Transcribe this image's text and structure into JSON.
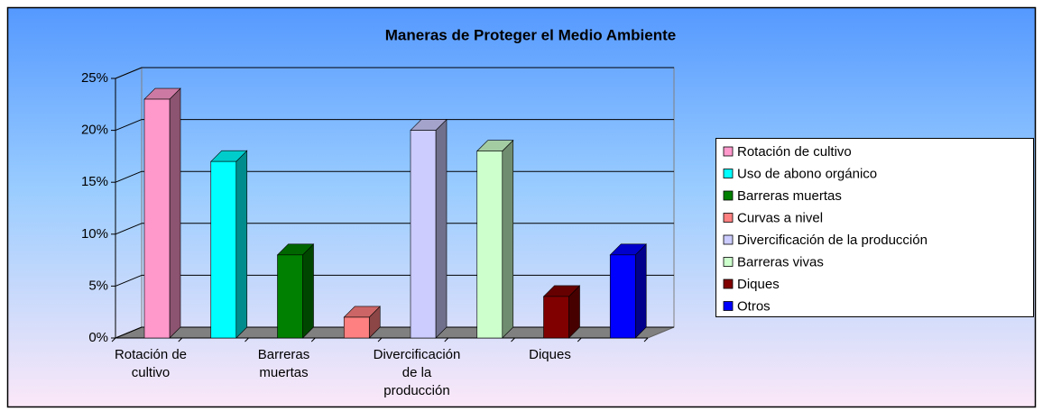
{
  "chart_data": {
    "type": "bar3d",
    "title": "Maneras de Proteger el Medio Ambiente",
    "categories": [
      "Rotación de cultivo",
      null,
      "Barreras muertas",
      null,
      "Divercificación de la producción",
      null,
      "Diques",
      null
    ],
    "values": [
      23,
      17,
      8,
      2,
      20,
      18,
      4,
      8
    ],
    "colors": [
      "#ff99cc",
      "#00ffff",
      "#008000",
      "#ff8080",
      "#ccccff",
      "#ccffcc",
      "#800000",
      "#0000ff"
    ],
    "legend_labels": [
      "Rotación de cultivo",
      "Uso de abono orgánico",
      "Barreras muertas",
      "Curvas a nivel",
      "Divercificación de la producción",
      "Barreras vivas",
      "Diques",
      "Otros"
    ],
    "legend": "right",
    "ylim": [
      0,
      25
    ],
    "yticks": [
      {
        "value": 0,
        "label": "0%"
      },
      {
        "value": 5,
        "label": "5%"
      },
      {
        "value": 10,
        "label": "10%"
      },
      {
        "value": 15,
        "label": "15%"
      },
      {
        "value": 20,
        "label": "20%"
      },
      {
        "value": 25,
        "label": "25%"
      }
    ],
    "grid": true
  }
}
